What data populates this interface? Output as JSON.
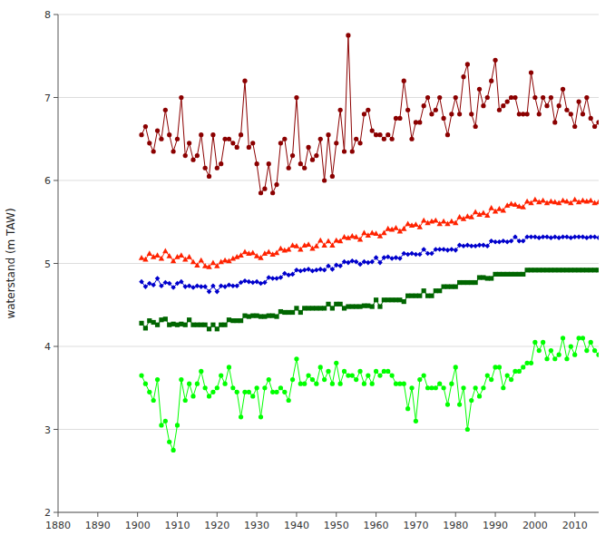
{
  "chart_data": {
    "type": "line",
    "ylabel": "waterstand (m TAW)",
    "xlim": [
      1880,
      2016
    ],
    "ylim": [
      2,
      8
    ],
    "xticks": [
      1880,
      1890,
      1900,
      1910,
      1920,
      1930,
      1940,
      1950,
      1960,
      1970,
      1980,
      1990,
      2000,
      2010
    ],
    "yticks": [
      2,
      3,
      4,
      5,
      6,
      7,
      8
    ],
    "grid": "y",
    "x": [
      1901,
      1902,
      1903,
      1904,
      1905,
      1906,
      1907,
      1908,
      1909,
      1910,
      1911,
      1912,
      1913,
      1914,
      1915,
      1916,
      1917,
      1918,
      1919,
      1920,
      1921,
      1922,
      1923,
      1924,
      1925,
      1926,
      1927,
      1928,
      1929,
      1930,
      1931,
      1932,
      1933,
      1934,
      1935,
      1936,
      1937,
      1938,
      1939,
      1940,
      1941,
      1942,
      1943,
      1944,
      1945,
      1946,
      1947,
      1948,
      1949,
      1950,
      1951,
      1952,
      1953,
      1954,
      1955,
      1956,
      1957,
      1958,
      1959,
      1960,
      1961,
      1962,
      1963,
      1964,
      1965,
      1966,
      1967,
      1968,
      1969,
      1970,
      1971,
      1972,
      1973,
      1974,
      1975,
      1976,
      1977,
      1978,
      1979,
      1980,
      1981,
      1982,
      1983,
      1984,
      1985,
      1986,
      1987,
      1988,
      1989,
      1990,
      1991,
      1992,
      1993,
      1994,
      1995,
      1996,
      1997,
      1998,
      1999,
      2000,
      2001,
      2002,
      2003,
      2004,
      2005,
      2006,
      2007,
      2008,
      2009,
      2010,
      2011,
      2012,
      2013,
      2014,
      2015,
      2016
    ],
    "series": [
      {
        "color": "#8B0000",
        "marker": "circle",
        "values": [
          6.55,
          6.65,
          6.45,
          6.35,
          6.6,
          6.5,
          6.85,
          6.55,
          6.35,
          6.5,
          7.0,
          6.3,
          6.45,
          6.25,
          6.3,
          6.55,
          6.15,
          6.05,
          6.55,
          6.15,
          6.2,
          6.5,
          6.5,
          6.45,
          6.4,
          6.55,
          7.2,
          6.4,
          6.45,
          6.2,
          5.85,
          5.9,
          6.2,
          5.85,
          5.95,
          6.45,
          6.5,
          6.15,
          6.3,
          7.0,
          6.2,
          6.15,
          6.4,
          6.25,
          6.3,
          6.5,
          6.0,
          6.55,
          6.05,
          6.45,
          6.85,
          6.35,
          7.75,
          6.35,
          6.5,
          6.45,
          6.8,
          6.85,
          6.6,
          6.55,
          6.55,
          6.5,
          6.55,
          6.5,
          6.75,
          6.75,
          7.2,
          6.85,
          6.5,
          6.7,
          6.7,
          6.9,
          7.0,
          6.8,
          6.85,
          7.0,
          6.75,
          6.55,
          6.8,
          7.0,
          6.8,
          7.25,
          7.4,
          6.8,
          6.65,
          7.1,
          6.9,
          7.0,
          7.2,
          7.45,
          6.85,
          6.9,
          6.95,
          7.0,
          7.0,
          6.8,
          6.8,
          6.8,
          7.3,
          7.0,
          6.8,
          7.0,
          6.9,
          7.0,
          6.7,
          6.9,
          7.1,
          6.85,
          6.8,
          6.65,
          6.95,
          6.8,
          7.0,
          6.75,
          6.65,
          6.7
        ]
      },
      {
        "color": "#FF2200",
        "marker": "triangle",
        "values": [
          5.07,
          5.05,
          5.12,
          5.08,
          5.1,
          5.06,
          5.15,
          5.09,
          5.03,
          5.08,
          5.1,
          5.05,
          5.08,
          5.02,
          4.98,
          5.04,
          4.97,
          4.96,
          5.01,
          4.97,
          5.02,
          5.04,
          5.03,
          5.06,
          5.08,
          5.1,
          5.14,
          5.12,
          5.13,
          5.09,
          5.07,
          5.12,
          5.14,
          5.11,
          5.13,
          5.18,
          5.16,
          5.17,
          5.22,
          5.21,
          5.17,
          5.22,
          5.23,
          5.18,
          5.21,
          5.28,
          5.22,
          5.27,
          5.22,
          5.28,
          5.27,
          5.32,
          5.31,
          5.33,
          5.32,
          5.29,
          5.37,
          5.34,
          5.37,
          5.36,
          5.33,
          5.37,
          5.42,
          5.41,
          5.43,
          5.39,
          5.42,
          5.48,
          5.46,
          5.47,
          5.44,
          5.52,
          5.49,
          5.51,
          5.52,
          5.48,
          5.51,
          5.48,
          5.51,
          5.49,
          5.56,
          5.54,
          5.57,
          5.56,
          5.62,
          5.59,
          5.61,
          5.58,
          5.67,
          5.63,
          5.66,
          5.64,
          5.7,
          5.72,
          5.71,
          5.69,
          5.68,
          5.75,
          5.73,
          5.77,
          5.74,
          5.76,
          5.73,
          5.75,
          5.74,
          5.73,
          5.76,
          5.75,
          5.73,
          5.77,
          5.74,
          5.76,
          5.75,
          5.76,
          5.73,
          5.74
        ]
      },
      {
        "color": "#0000CC",
        "marker": "diamond",
        "values": [
          4.78,
          4.72,
          4.76,
          4.74,
          4.82,
          4.73,
          4.77,
          4.76,
          4.71,
          4.76,
          4.78,
          4.72,
          4.73,
          4.71,
          4.73,
          4.72,
          4.72,
          4.66,
          4.73,
          4.66,
          4.73,
          4.72,
          4.74,
          4.73,
          4.73,
          4.77,
          4.79,
          4.78,
          4.77,
          4.78,
          4.76,
          4.77,
          4.83,
          4.82,
          4.82,
          4.83,
          4.88,
          4.86,
          4.87,
          4.92,
          4.91,
          4.92,
          4.93,
          4.91,
          4.92,
          4.93,
          4.92,
          4.97,
          4.93,
          4.98,
          4.97,
          5.02,
          5.01,
          5.03,
          5.02,
          4.99,
          5.02,
          5.01,
          5.02,
          5.07,
          5.01,
          5.07,
          5.08,
          5.06,
          5.07,
          5.06,
          5.12,
          5.11,
          5.12,
          5.11,
          5.11,
          5.17,
          5.12,
          5.12,
          5.17,
          5.17,
          5.17,
          5.16,
          5.17,
          5.16,
          5.22,
          5.21,
          5.22,
          5.21,
          5.21,
          5.22,
          5.22,
          5.21,
          5.27,
          5.26,
          5.26,
          5.27,
          5.26,
          5.27,
          5.32,
          5.27,
          5.27,
          5.32,
          5.32,
          5.32,
          5.31,
          5.32,
          5.32,
          5.31,
          5.32,
          5.31,
          5.32,
          5.32,
          5.31,
          5.32,
          5.32,
          5.32,
          5.31,
          5.32,
          5.32,
          5.31
        ]
      },
      {
        "color": "#006600",
        "marker": "square",
        "values": [
          4.28,
          4.22,
          4.31,
          4.29,
          4.26,
          4.32,
          4.33,
          4.26,
          4.27,
          4.26,
          4.27,
          4.26,
          4.32,
          4.26,
          4.26,
          4.26,
          4.26,
          4.21,
          4.26,
          4.21,
          4.26,
          4.26,
          4.32,
          4.31,
          4.31,
          4.31,
          4.37,
          4.36,
          4.37,
          4.37,
          4.36,
          4.36,
          4.37,
          4.37,
          4.36,
          4.42,
          4.41,
          4.41,
          4.41,
          4.46,
          4.41,
          4.46,
          4.46,
          4.46,
          4.46,
          4.46,
          4.46,
          4.51,
          4.46,
          4.51,
          4.51,
          4.46,
          4.48,
          4.48,
          4.48,
          4.48,
          4.49,
          4.49,
          4.48,
          4.56,
          4.48,
          4.56,
          4.56,
          4.56,
          4.56,
          4.56,
          4.54,
          4.61,
          4.61,
          4.61,
          4.61,
          4.67,
          4.61,
          4.61,
          4.67,
          4.67,
          4.72,
          4.72,
          4.72,
          4.72,
          4.77,
          4.77,
          4.77,
          4.77,
          4.77,
          4.83,
          4.83,
          4.82,
          4.82,
          4.87,
          4.87,
          4.87,
          4.87,
          4.87,
          4.87,
          4.87,
          4.87,
          4.92,
          4.92,
          4.92,
          4.92,
          4.92,
          4.92,
          4.92,
          4.92,
          4.92,
          4.92,
          4.92,
          4.92,
          4.92,
          4.92,
          4.92,
          4.92,
          4.92,
          4.92,
          4.92
        ]
      },
      {
        "color": "#00FF00",
        "marker": "circle",
        "values": [
          3.65,
          3.55,
          3.45,
          3.35,
          3.6,
          3.05,
          3.1,
          2.85,
          2.75,
          3.05,
          3.6,
          3.35,
          3.55,
          3.4,
          3.55,
          3.7,
          3.5,
          3.4,
          3.45,
          3.5,
          3.65,
          3.55,
          3.75,
          3.5,
          3.45,
          3.15,
          3.45,
          3.45,
          3.4,
          3.5,
          3.15,
          3.5,
          3.6,
          3.45,
          3.45,
          3.5,
          3.45,
          3.35,
          3.6,
          3.85,
          3.55,
          3.55,
          3.65,
          3.6,
          3.55,
          3.75,
          3.6,
          3.7,
          3.55,
          3.8,
          3.55,
          3.7,
          3.65,
          3.65,
          3.6,
          3.7,
          3.55,
          3.65,
          3.55,
          3.7,
          3.65,
          3.7,
          3.7,
          3.65,
          3.55,
          3.55,
          3.55,
          3.25,
          3.5,
          3.1,
          3.6,
          3.65,
          3.5,
          3.5,
          3.5,
          3.55,
          3.5,
          3.3,
          3.55,
          3.75,
          3.3,
          3.5,
          3.0,
          3.35,
          3.5,
          3.4,
          3.5,
          3.65,
          3.6,
          3.75,
          3.75,
          3.5,
          3.65,
          3.6,
          3.7,
          3.7,
          3.75,
          3.8,
          3.8,
          4.05,
          3.95,
          4.05,
          3.85,
          3.95,
          3.85,
          3.9,
          4.1,
          3.85,
          4.0,
          3.9,
          4.1,
          4.1,
          3.95,
          4.05,
          3.95,
          3.9
        ]
      }
    ]
  }
}
